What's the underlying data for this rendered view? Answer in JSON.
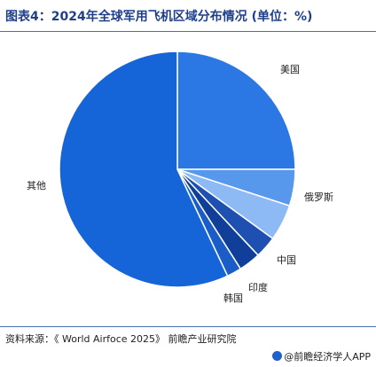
{
  "header": {
    "title": "图表4：2024年全球军用飞机区域分布情况 (单位：%)"
  },
  "chart_data": {
    "type": "pie",
    "title": "图表4：2024年全球军用飞机区域分布情况 (单位：%)",
    "unit": "%",
    "start_angle_deg": 0,
    "direction": "clockwise",
    "slices": [
      {
        "label": "美国",
        "value": 25,
        "color": "#2b78e4"
      },
      {
        "label": "俄罗斯",
        "value": 5,
        "color": "#5797ec"
      },
      {
        "label": "中国",
        "value": 5,
        "color": "#8dbaf5"
      },
      {
        "label": "印度",
        "value": 3,
        "color": "#1d50b0"
      },
      {
        "label": "韩国",
        "value": 3,
        "color": "#0f3f98"
      },
      {
        "label": "",
        "value": 2,
        "color": "#1a5dc8"
      },
      {
        "label": "其他",
        "value": 57,
        "color": "#1565d8"
      }
    ]
  },
  "footer": {
    "source": "资料来源：《 World Airfoce 2025》 前瞻产业研究院",
    "brand": "@前瞻经济学人APP"
  }
}
